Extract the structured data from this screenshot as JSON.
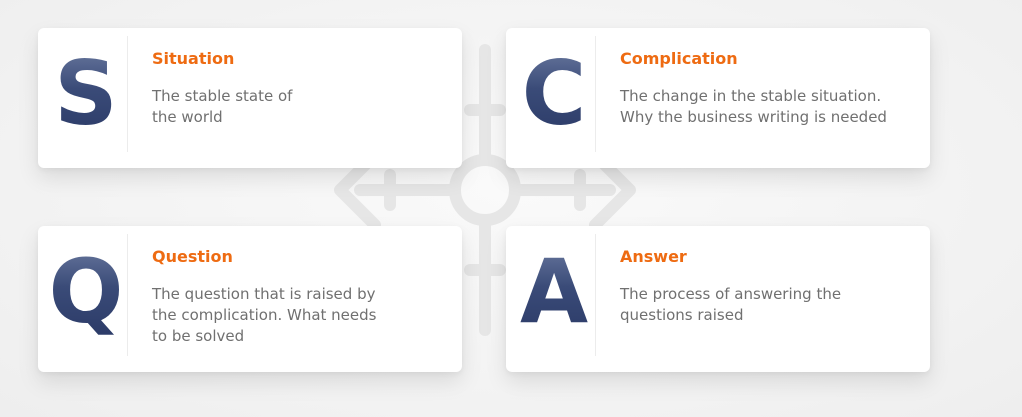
{
  "diagram": {
    "cards": [
      {
        "letter": "S",
        "title": "Situation",
        "description": "The stable state of\nthe world"
      },
      {
        "letter": "C",
        "title": "Complication",
        "description": "The change in the stable situation.\nWhy the business writing is needed"
      },
      {
        "letter": "Q",
        "title": "Question",
        "description": "The question that is raised by\nthe complication. What needs\nto be solved"
      },
      {
        "letter": "A",
        "title": "Answer",
        "description": "The process of answering the\nquestions raised"
      }
    ],
    "colors": {
      "title": "#ee6b12",
      "letter": "#2f3f68",
      "description": "#707070",
      "background": "#f4f4f4"
    }
  }
}
